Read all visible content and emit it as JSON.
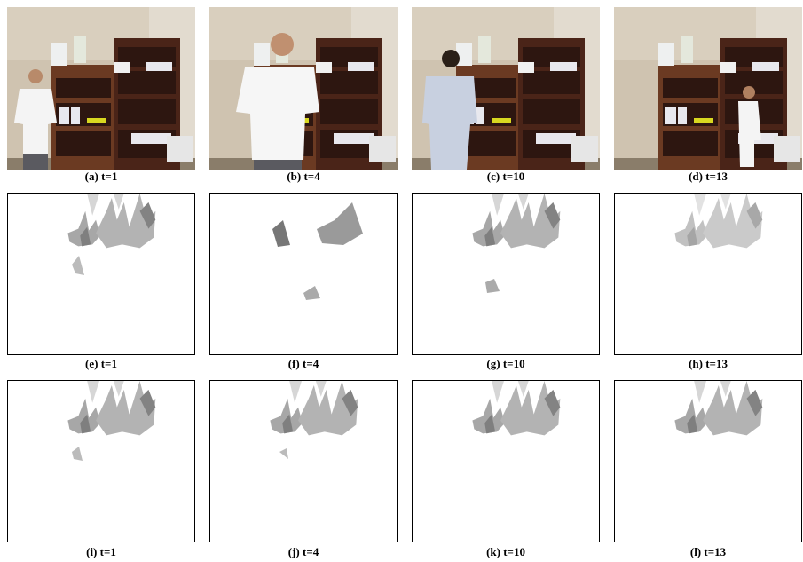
{
  "panels": [
    {
      "caption": "(a) t=1"
    },
    {
      "caption": "(b) t=4"
    },
    {
      "caption": "(c) t=10"
    },
    {
      "caption": "(d) t=13"
    },
    {
      "caption": "(e) t=1"
    },
    {
      "caption": "(f) t=4"
    },
    {
      "caption": "(g) t=10"
    },
    {
      "caption": "(h) t=13"
    },
    {
      "caption": "(i) t=1"
    },
    {
      "caption": "(j) t=4"
    },
    {
      "caption": "(k) t=10"
    },
    {
      "caption": "(l) t=13"
    }
  ]
}
